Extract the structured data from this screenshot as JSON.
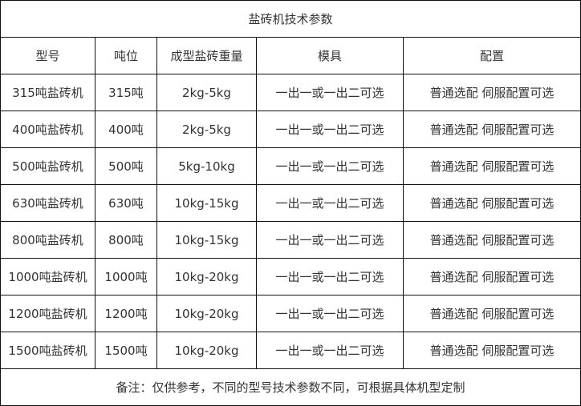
{
  "title": "盐砖机技术参数",
  "headers": [
    "型号",
    "吨位",
    "成型盐砖重量",
    "模具",
    "配置"
  ],
  "rows": [
    [
      "315吨盐砖机",
      "315吨",
      "2kg-5kg",
      "一出一或一出二可选",
      "普通选配 伺服配置可选"
    ],
    [
      "400吨盐砖机",
      "400吨",
      "2kg-5kg",
      "一出一或一出二可选",
      "普通选配 伺服配置可选"
    ],
    [
      "500吨盐砖机",
      "500吨",
      "5kg-10kg",
      "一出一或一出二可选",
      "普通选配 伺服配置可选"
    ],
    [
      "630吨盐砖机",
      "630吨",
      "10kg-15kg",
      "一出一或一出二可选",
      "普通选配 伺服配置可选"
    ],
    [
      "800吨盐砖机",
      "800吨",
      "10kg-15kg",
      "一出一或一出二可选",
      "普通选配 伺服配置可选"
    ],
    [
      "1000吨盐砖机",
      "1000吨",
      "10kg-20kg",
      "一出一或一出二可选",
      "普通选配 伺服配置可选"
    ],
    [
      "1200吨盐砖机",
      "1200吨",
      "10kg-20kg",
      "一出一或一出二可选",
      "普通选配 伺服配置可选"
    ],
    [
      "1500吨盐砖机",
      "1500吨",
      "10kg-20kg",
      "一出一或一出二可选",
      "普通选配 伺服配置可选"
    ]
  ],
  "note": "备注：仅供参考，不同的型号技术参数不同，可根据具体机型定制"
}
